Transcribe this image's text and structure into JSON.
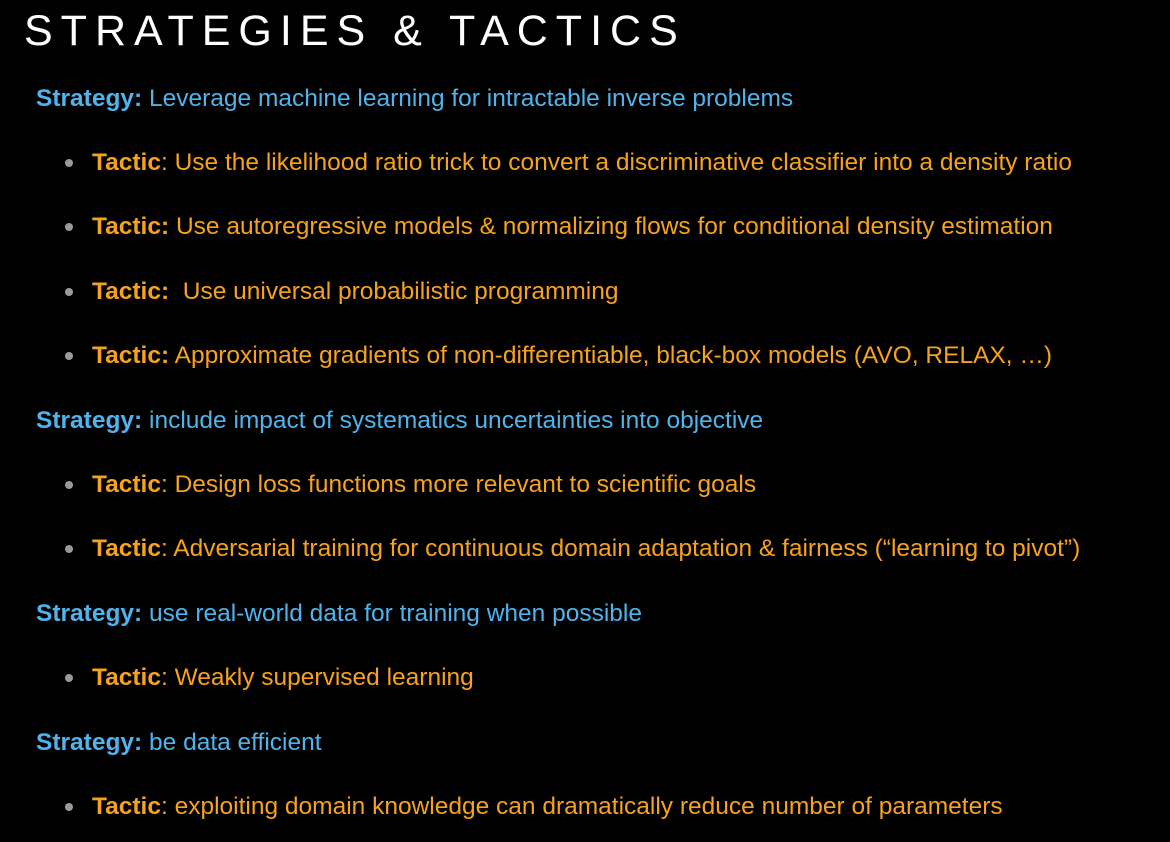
{
  "slide": {
    "title": "STRATEGIES & TACTICS",
    "items": [
      {
        "type": "strategy",
        "label": "Strategy:",
        "text": " Leverage machine learning for intractable inverse problems"
      },
      {
        "type": "tactic",
        "label": "Tactic",
        "text": ": Use the likelihood ratio trick to convert a discriminative classifier into  a density ratio"
      },
      {
        "type": "tactic",
        "label": "Tactic:",
        "text": " Use autoregressive models & normalizing flows for conditional density estimation"
      },
      {
        "type": "tactic",
        "label": "Tactic:",
        "text": "  Use universal probabilistic programming"
      },
      {
        "type": "tactic",
        "label": "Tactic:",
        "text": " Approximate gradients of non-differentiable, black-box models (AVO, RELAX, …)"
      },
      {
        "type": "strategy",
        "label": "Strategy:",
        "text": " include impact of systematics uncertainties into objective"
      },
      {
        "type": "tactic",
        "label": "Tactic",
        "text": ": Design loss functions more relevant to scientific goals"
      },
      {
        "type": "tactic",
        "label": "Tactic",
        "text": ": Adversarial training for continuous domain adaptation & fairness (“learning to pivot”)"
      },
      {
        "type": "strategy",
        "label": "Strategy:",
        "text": " use real-world data for training when possible"
      },
      {
        "type": "tactic",
        "label": "Tactic",
        "text": ": Weakly supervised learning"
      },
      {
        "type": "strategy",
        "label": "Strategy:",
        "text": " be data efficient"
      },
      {
        "type": "tactic",
        "label": "Tactic",
        "text": ": exploiting domain knowledge can dramatically reduce number of parameters"
      }
    ]
  },
  "colors": {
    "background": "#000000",
    "title": "#ffffff",
    "strategy": "#4fb3ec",
    "tactic": "#f7a21b",
    "bullet": "#9a9a9a"
  }
}
